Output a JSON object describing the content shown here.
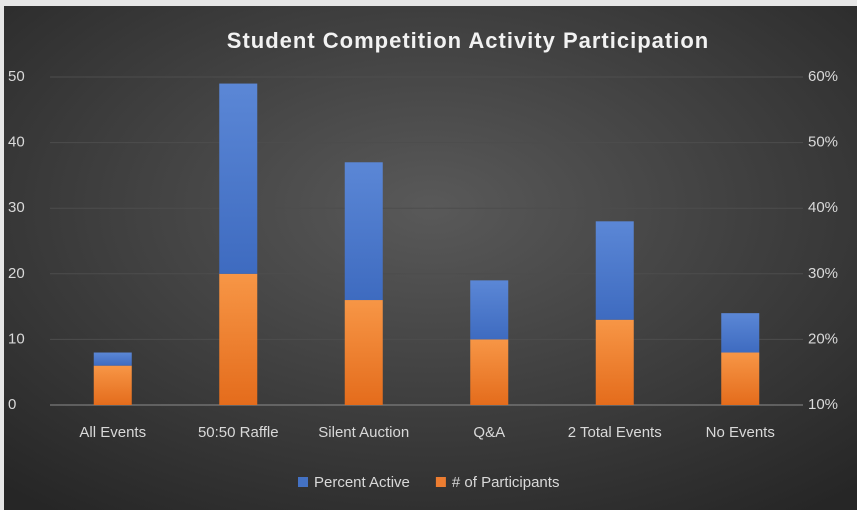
{
  "chart_data": {
    "type": "bar",
    "stacked": true,
    "title": "Student Competition Activity Participation",
    "categories": [
      "All Events",
      "50:50 Raffle",
      "Silent Auction",
      "Q&A",
      "2 Total Events",
      "No Events"
    ],
    "series": [
      {
        "name": "# of Participants",
        "color": "#ed7d31",
        "values": [
          6,
          20,
          16,
          10,
          13,
          8
        ]
      },
      {
        "name": "Percent Active",
        "color": "#4472c4",
        "values": [
          2,
          29,
          21,
          9,
          15,
          6
        ]
      }
    ],
    "legend_order": [
      1,
      0
    ],
    "ylim": [
      0,
      50
    ],
    "yticks": [
      0,
      10,
      20,
      30,
      40,
      50
    ],
    "y2lim": [
      10,
      60
    ],
    "y2ticks": [
      {
        "value": 10,
        "label": "10%"
      },
      {
        "value": 20,
        "label": "20%"
      },
      {
        "value": 30,
        "label": "30%"
      },
      {
        "value": 40,
        "label": "40%"
      },
      {
        "value": 50,
        "label": "50%"
      },
      {
        "value": 60,
        "label": "60%"
      }
    ],
    "grid": true,
    "legend": "bottom"
  }
}
